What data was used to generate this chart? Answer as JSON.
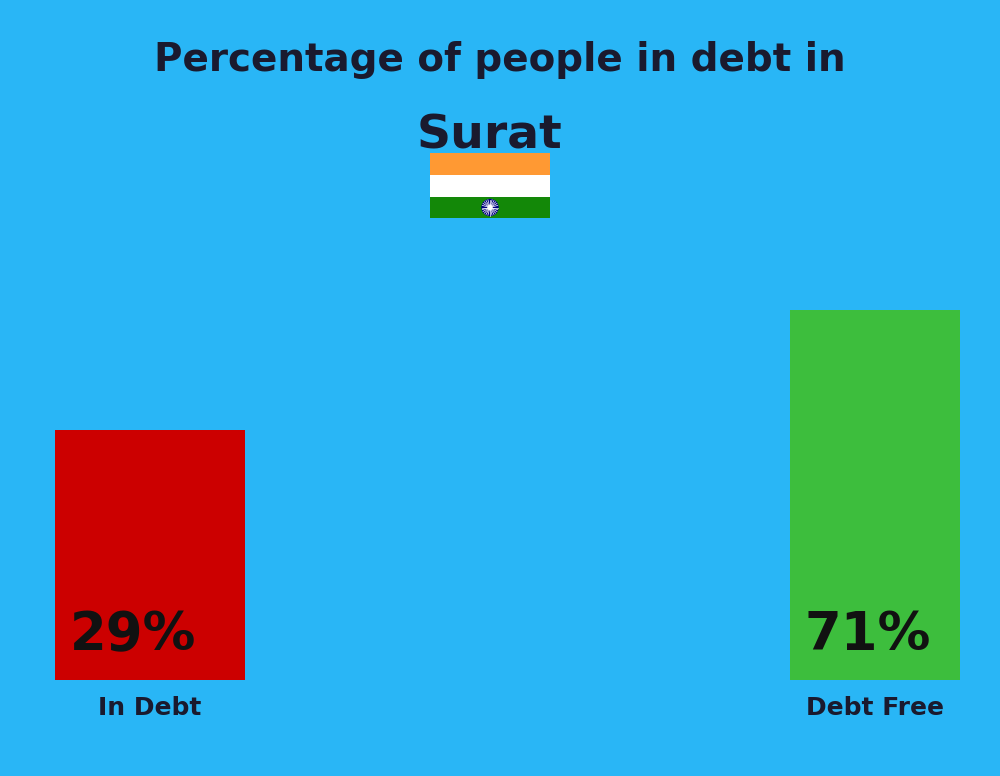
{
  "background_color": "#29B6F6",
  "title_line1": "Percentage of people in debt in",
  "title_line2": "Surat",
  "title_color": "#1a1a2e",
  "title_fontsize": 28,
  "title2_fontsize": 34,
  "bar_left_value": "29%",
  "bar_right_value": "71%",
  "bar_left_color": "#CC0000",
  "bar_right_color": "#3DBE3D",
  "bar_left_label": "In Debt",
  "bar_right_label": "Debt Free",
  "bar_label_color": "#1a1a2e",
  "bar_label_fontsize": 18,
  "bar_value_fontsize": 38,
  "bar_value_color": "#111111",
  "flag_orange": "#FF9933",
  "flag_white": "#FFFFFF",
  "flag_green": "#138808",
  "flag_wheel_color": "#000080"
}
